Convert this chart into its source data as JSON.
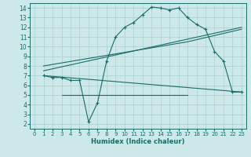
{
  "title": "",
  "xlabel": "Humidex (Indice chaleur)",
  "ylabel": "",
  "xlim": [
    -0.5,
    23.5
  ],
  "ylim": [
    1.5,
    14.5
  ],
  "xticks": [
    0,
    1,
    2,
    3,
    4,
    5,
    6,
    7,
    8,
    9,
    10,
    11,
    12,
    13,
    14,
    15,
    16,
    17,
    18,
    19,
    20,
    21,
    22,
    23
  ],
  "yticks": [
    2,
    3,
    4,
    5,
    6,
    7,
    8,
    9,
    10,
    11,
    12,
    13,
    14
  ],
  "bg_color": "#cde8e8",
  "grid_color": "#a8d0d0",
  "line_color": "#1a6b6b",
  "line1_x": [
    1,
    2,
    3,
    4,
    5,
    6,
    7,
    8,
    9,
    10,
    11,
    12,
    13,
    14,
    15,
    16,
    17,
    18,
    19,
    20,
    21,
    22,
    23
  ],
  "line1_y": [
    7.0,
    6.8,
    6.8,
    6.5,
    6.5,
    2.2,
    4.2,
    8.5,
    11.0,
    12.0,
    12.5,
    13.3,
    14.1,
    14.0,
    13.8,
    14.0,
    13.0,
    12.3,
    11.8,
    9.5,
    8.5,
    5.3,
    5.3
  ],
  "line2_x": [
    1,
    23
  ],
  "line2_y": [
    7.0,
    5.3
  ],
  "line3_x": [
    1,
    23
  ],
  "line3_y": [
    7.5,
    12.0
  ],
  "line4_x": [
    1,
    17,
    23
  ],
  "line4_y": [
    8.0,
    10.5,
    11.8
  ],
  "line5_x": [
    3,
    17
  ],
  "line5_y": [
    5.0,
    5.0
  ]
}
